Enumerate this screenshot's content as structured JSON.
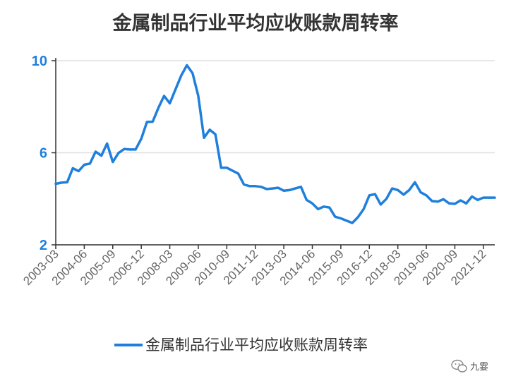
{
  "chart_data": {
    "type": "line",
    "title": "金属制品行业平均应收账款周转率",
    "ylim": [
      2,
      10
    ],
    "yticks": [
      "10",
      "6",
      "2"
    ],
    "grid": true,
    "legend_position": "bottom",
    "x_tick_labels": [
      "2003-03",
      "2004-06",
      "2005-09",
      "2006-12",
      "2008-03",
      "2009-06",
      "2010-09",
      "2011-12",
      "2013-03",
      "2014-06",
      "2015-09",
      "2016-12",
      "2018-03",
      "2019-06",
      "2020-09",
      "2021-12"
    ],
    "series": [
      {
        "name": "金属制品行业平均应收账款周转率",
        "color": "#1e7fdc",
        "values": [
          4.65,
          4.7,
          4.72,
          5.33,
          5.2,
          5.48,
          5.53,
          6.05,
          5.87,
          6.4,
          5.6,
          5.99,
          6.16,
          6.14,
          6.14,
          6.61,
          7.34,
          7.35,
          7.95,
          8.47,
          8.15,
          8.75,
          9.35,
          9.8,
          9.45,
          8.47,
          6.65,
          7.0,
          6.8,
          5.35,
          5.35,
          5.22,
          5.1,
          4.62,
          4.55,
          4.55,
          4.52,
          4.42,
          4.45,
          4.48,
          4.35,
          4.38,
          4.45,
          4.52,
          3.95,
          3.8,
          3.55,
          3.66,
          3.62,
          3.22,
          3.15,
          3.05,
          2.95,
          3.2,
          3.55,
          4.15,
          4.2,
          3.75,
          4.0,
          4.45,
          4.38,
          4.18,
          4.38,
          4.72,
          4.28,
          4.15,
          3.9,
          3.88,
          3.98,
          3.8,
          3.78,
          3.93,
          3.8,
          4.1,
          3.95,
          4.05,
          4.05,
          4.05
        ],
        "x_labels_at_index": [
          0,
          5,
          10,
          15,
          20,
          25,
          30,
          35,
          40,
          45,
          50,
          55,
          60,
          65,
          70,
          75
        ]
      }
    ]
  },
  "watermark": {
    "text": "九霎"
  }
}
